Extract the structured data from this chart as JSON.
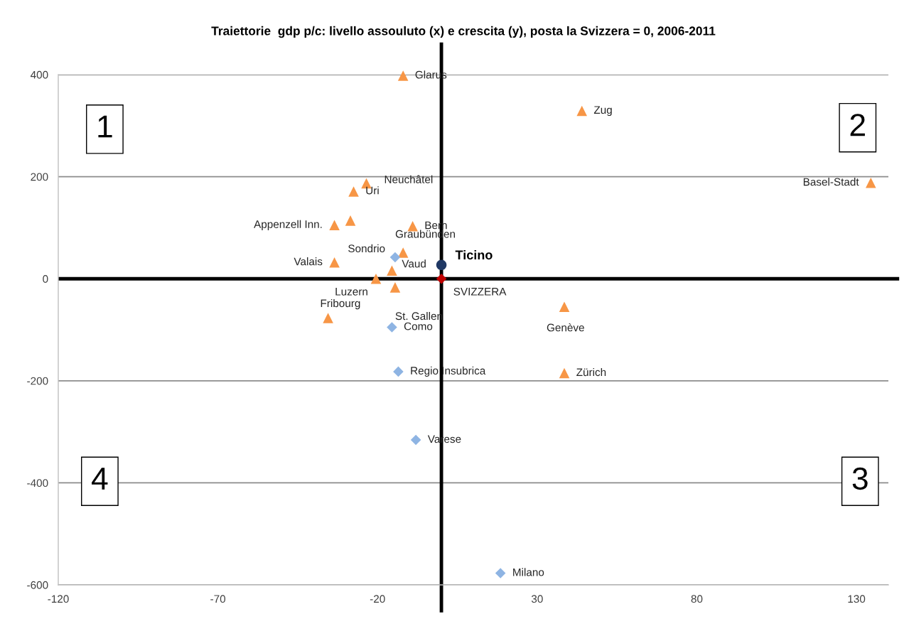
{
  "chart_data": {
    "type": "scatter",
    "title": "Traiettorie  gdp p/c: livello assouluto (x) e crescita (y), posta la Svizzera = 0, 2006-2011",
    "xlim": [
      -120,
      140
    ],
    "xticks": [
      -120,
      -70,
      -20,
      30,
      80,
      130
    ],
    "ylim": [
      -600,
      400
    ],
    "yticks": [
      -600,
      -400,
      -200,
      0,
      200,
      400
    ],
    "grid": "y",
    "series": [
      {
        "color": "#F79646",
        "marker": "triangle",
        "x": [
          -12,
          44,
          134.5,
          -23.5,
          -27.5,
          -28.5,
          -33.5,
          -9,
          -12,
          -33.5,
          -15.5,
          -20.5,
          -14.5,
          -35.5,
          38.5,
          38.5
        ],
        "values": [
          398,
          329,
          188,
          187,
          171,
          114,
          105,
          103,
          51,
          32,
          16,
          0,
          -17,
          -77,
          -55,
          -185
        ]
      },
      {
        "color": "#8EB4E3",
        "marker": "diamond",
        "x": [
          -14.5,
          -15.5,
          -13.5,
          -8,
          18.5
        ],
        "values": [
          42,
          -95,
          -182,
          -316,
          -577
        ]
      },
      {
        "name": "Ticino",
        "color": "#1F3864",
        "marker": "circle",
        "x": [
          0
        ],
        "values": [
          27
        ]
      },
      {
        "color": "#C00000",
        "marker": "diamond",
        "x": [
          0
        ],
        "values": [
          0
        ]
      }
    ],
    "ref_lines": [
      {
        "axis": "x",
        "value": 0,
        "color": "#000000"
      },
      {
        "axis": "y",
        "value": 0,
        "color": "#000000"
      }
    ],
    "annotations": [
      "1",
      "2",
      "3",
      "4",
      {
        "text": "Glarus",
        "x": -12,
        "y": 398
      },
      {
        "text": "Zug",
        "x": 44,
        "y": 329
      },
      {
        "text": "Basel-Stadt",
        "x": 134.5,
        "y": 188
      },
      {
        "text": "Neuchâtel",
        "x": -23.5,
        "y": 187
      },
      {
        "text": "Uri",
        "x": -27.5,
        "y": 171
      },
      {
        "text": "Appenzell Inn.",
        "x": -33.5,
        "y": 105
      },
      {
        "text": "Bern",
        "x": -9,
        "y": 103
      },
      {
        "text": "Graubünden",
        "x": -12,
        "y": 51
      },
      {
        "text": "Sondrio",
        "x": -14.5,
        "y": 42
      },
      {
        "text": "Valais",
        "x": -33.5,
        "y": 32
      },
      {
        "text": "Vaud",
        "x": -15.5,
        "y": 16
      },
      {
        "text": "Luzern",
        "x": -20.5,
        "y": 0
      },
      {
        "text": "SVIZZERA",
        "x": 0,
        "y": 0
      },
      {
        "text": "St. Gallen",
        "x": -14.5,
        "y": -17
      },
      {
        "text": "Fribourg",
        "x": -35.5,
        "y": -77
      },
      {
        "text": "Como",
        "x": -15.5,
        "y": -95
      },
      {
        "text": "Genève",
        "x": 38.5,
        "y": -55
      },
      {
        "text": "Regio Insubrica",
        "x": -13.5,
        "y": -182
      },
      {
        "text": "Zürich",
        "x": 38.5,
        "y": -185
      },
      {
        "text": "Varese",
        "x": -8,
        "y": -316
      },
      {
        "text": "Milano",
        "x": 18.5,
        "y": -577
      }
    ]
  }
}
